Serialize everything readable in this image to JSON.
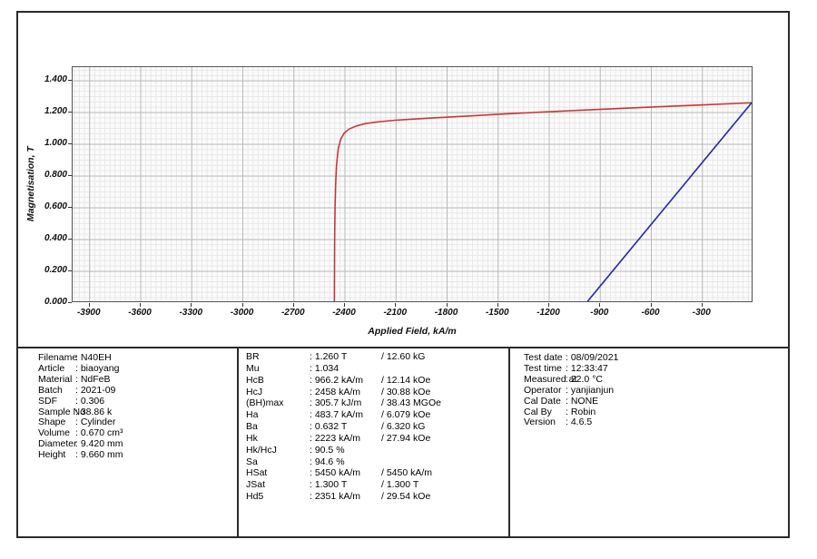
{
  "chart_data": {
    "type": "line",
    "title": "",
    "xlabel": "Applied Field, kA/m",
    "ylabel": "Magnetisation, T",
    "xlim": [
      -4000,
      0
    ],
    "ylim": [
      0,
      1.486
    ],
    "grid": {
      "on": true,
      "major_x_step": 300,
      "major_y_step": 0.2,
      "minor_x_step": 30,
      "minor_y_step": 0.0333
    },
    "legend_position": "none",
    "xticks": [
      -3900,
      -3600,
      -3300,
      -3000,
      -2700,
      -2400,
      -2100,
      -1800,
      -1500,
      -1200,
      -900,
      -600,
      -300
    ],
    "ytick_values": [
      0.0,
      0.2,
      0.4,
      0.6,
      0.8,
      1.0,
      1.2,
      1.4
    ],
    "ytick_labels": [
      "0.000",
      "0.200",
      "0.400",
      "0.600",
      "0.800",
      "1.000",
      "1.200",
      "1.400"
    ],
    "series": [
      {
        "name": "polarization-J-curve",
        "color": "#cc3434",
        "points": [
          [
            0,
            1.26
          ],
          [
            -300,
            1.246
          ],
          [
            -600,
            1.232
          ],
          [
            -900,
            1.218
          ],
          [
            -1200,
            1.203
          ],
          [
            -1500,
            1.186
          ],
          [
            -1800,
            1.168
          ],
          [
            -2000,
            1.156
          ],
          [
            -2100,
            1.149
          ],
          [
            -2200,
            1.139
          ],
          [
            -2280,
            1.127
          ],
          [
            -2330,
            1.112
          ],
          [
            -2370,
            1.094
          ],
          [
            -2400,
            1.068
          ],
          [
            -2420,
            1.03
          ],
          [
            -2435,
            0.97
          ],
          [
            -2445,
            0.87
          ],
          [
            -2450,
            0.76
          ],
          [
            -2454,
            0.6
          ],
          [
            -2456,
            0.44
          ],
          [
            -2457,
            0.28
          ],
          [
            -2458,
            0.0
          ]
        ]
      },
      {
        "name": "induction-B-line",
        "color": "#2424b4",
        "points": [
          [
            -966.2,
            0.0
          ],
          [
            0,
            1.26
          ]
        ]
      }
    ]
  },
  "panels": {
    "sample": {
      "rows": [
        {
          "label": "Filename",
          "value": ": N40EH"
        },
        {
          "label": "Article",
          "value": ": biaoyang"
        },
        {
          "label": "Material",
          "value": ": NdFeB"
        },
        {
          "label": "Batch",
          "value": ": 2021-09"
        },
        {
          "label": "SDF",
          "value": ": 0.306"
        },
        {
          "label": "Sample No",
          "value": ": 38.86 k"
        },
        {
          "label": "Shape",
          "value": ": Cylinder"
        },
        {
          "label": "Volume",
          "value": ": 0.670 cm³"
        },
        {
          "label": "Diameter",
          "value": ": 9.420 mm"
        },
        {
          "label": "Height",
          "value": ": 9.660 mm"
        }
      ]
    },
    "results": {
      "rows": [
        {
          "label": "BR",
          "value": ": 1.260 T",
          "alt": "/ 12.60 kG"
        },
        {
          "label": "Mu",
          "value": ": 1.034",
          "alt": ""
        },
        {
          "label": "HcB",
          "value": ": 966.2 kA/m",
          "alt": "/ 12.14 kOe"
        },
        {
          "label": "HcJ",
          "value": ": 2458 kA/m",
          "alt": "/ 30.88 kOe"
        },
        {
          "label": "(BH)max",
          "value": ": 305.7 kJ/m",
          "alt": "/ 38.43 MGOe"
        },
        {
          "label": "Ha",
          "value": ": 483.7 kA/m",
          "alt": "/ 6.079 kOe"
        },
        {
          "label": "Ba",
          "value": ": 0.632 T",
          "alt": "/ 6.320 kG"
        },
        {
          "label": "Hk",
          "value": ": 2223 kA/m",
          "alt": "/ 27.94 kOe"
        },
        {
          "label": "Hk/HcJ",
          "value": ": 90.5 %",
          "alt": ""
        },
        {
          "label": "Sa",
          "value": ": 94.6 %",
          "alt": ""
        },
        {
          "label": "HSat",
          "value": ": 5450 kA/m",
          "alt": "/ 5450 kA/m"
        },
        {
          "label": "JSat",
          "value": ": 1.300 T",
          "alt": "/ 1.300 T"
        },
        {
          "label": "Hd5",
          "value": ": 2351 kA/m",
          "alt": "/ 29.54 kOe"
        }
      ]
    },
    "test": {
      "rows": [
        {
          "label": "Test date",
          "value": ": 08/09/2021"
        },
        {
          "label": "Test time",
          "value": ": 12:33:47"
        },
        {
          "label": "Measured at",
          "value": ": 22.0 °C"
        },
        {
          "label": "Operator",
          "value": ": yanjianjun"
        },
        {
          "label": "Cal Date",
          "value": ": NONE"
        },
        {
          "label": "Cal By",
          "value": ": Robin"
        },
        {
          "label": "Version",
          "value": ": 4.6.5"
        }
      ]
    }
  }
}
